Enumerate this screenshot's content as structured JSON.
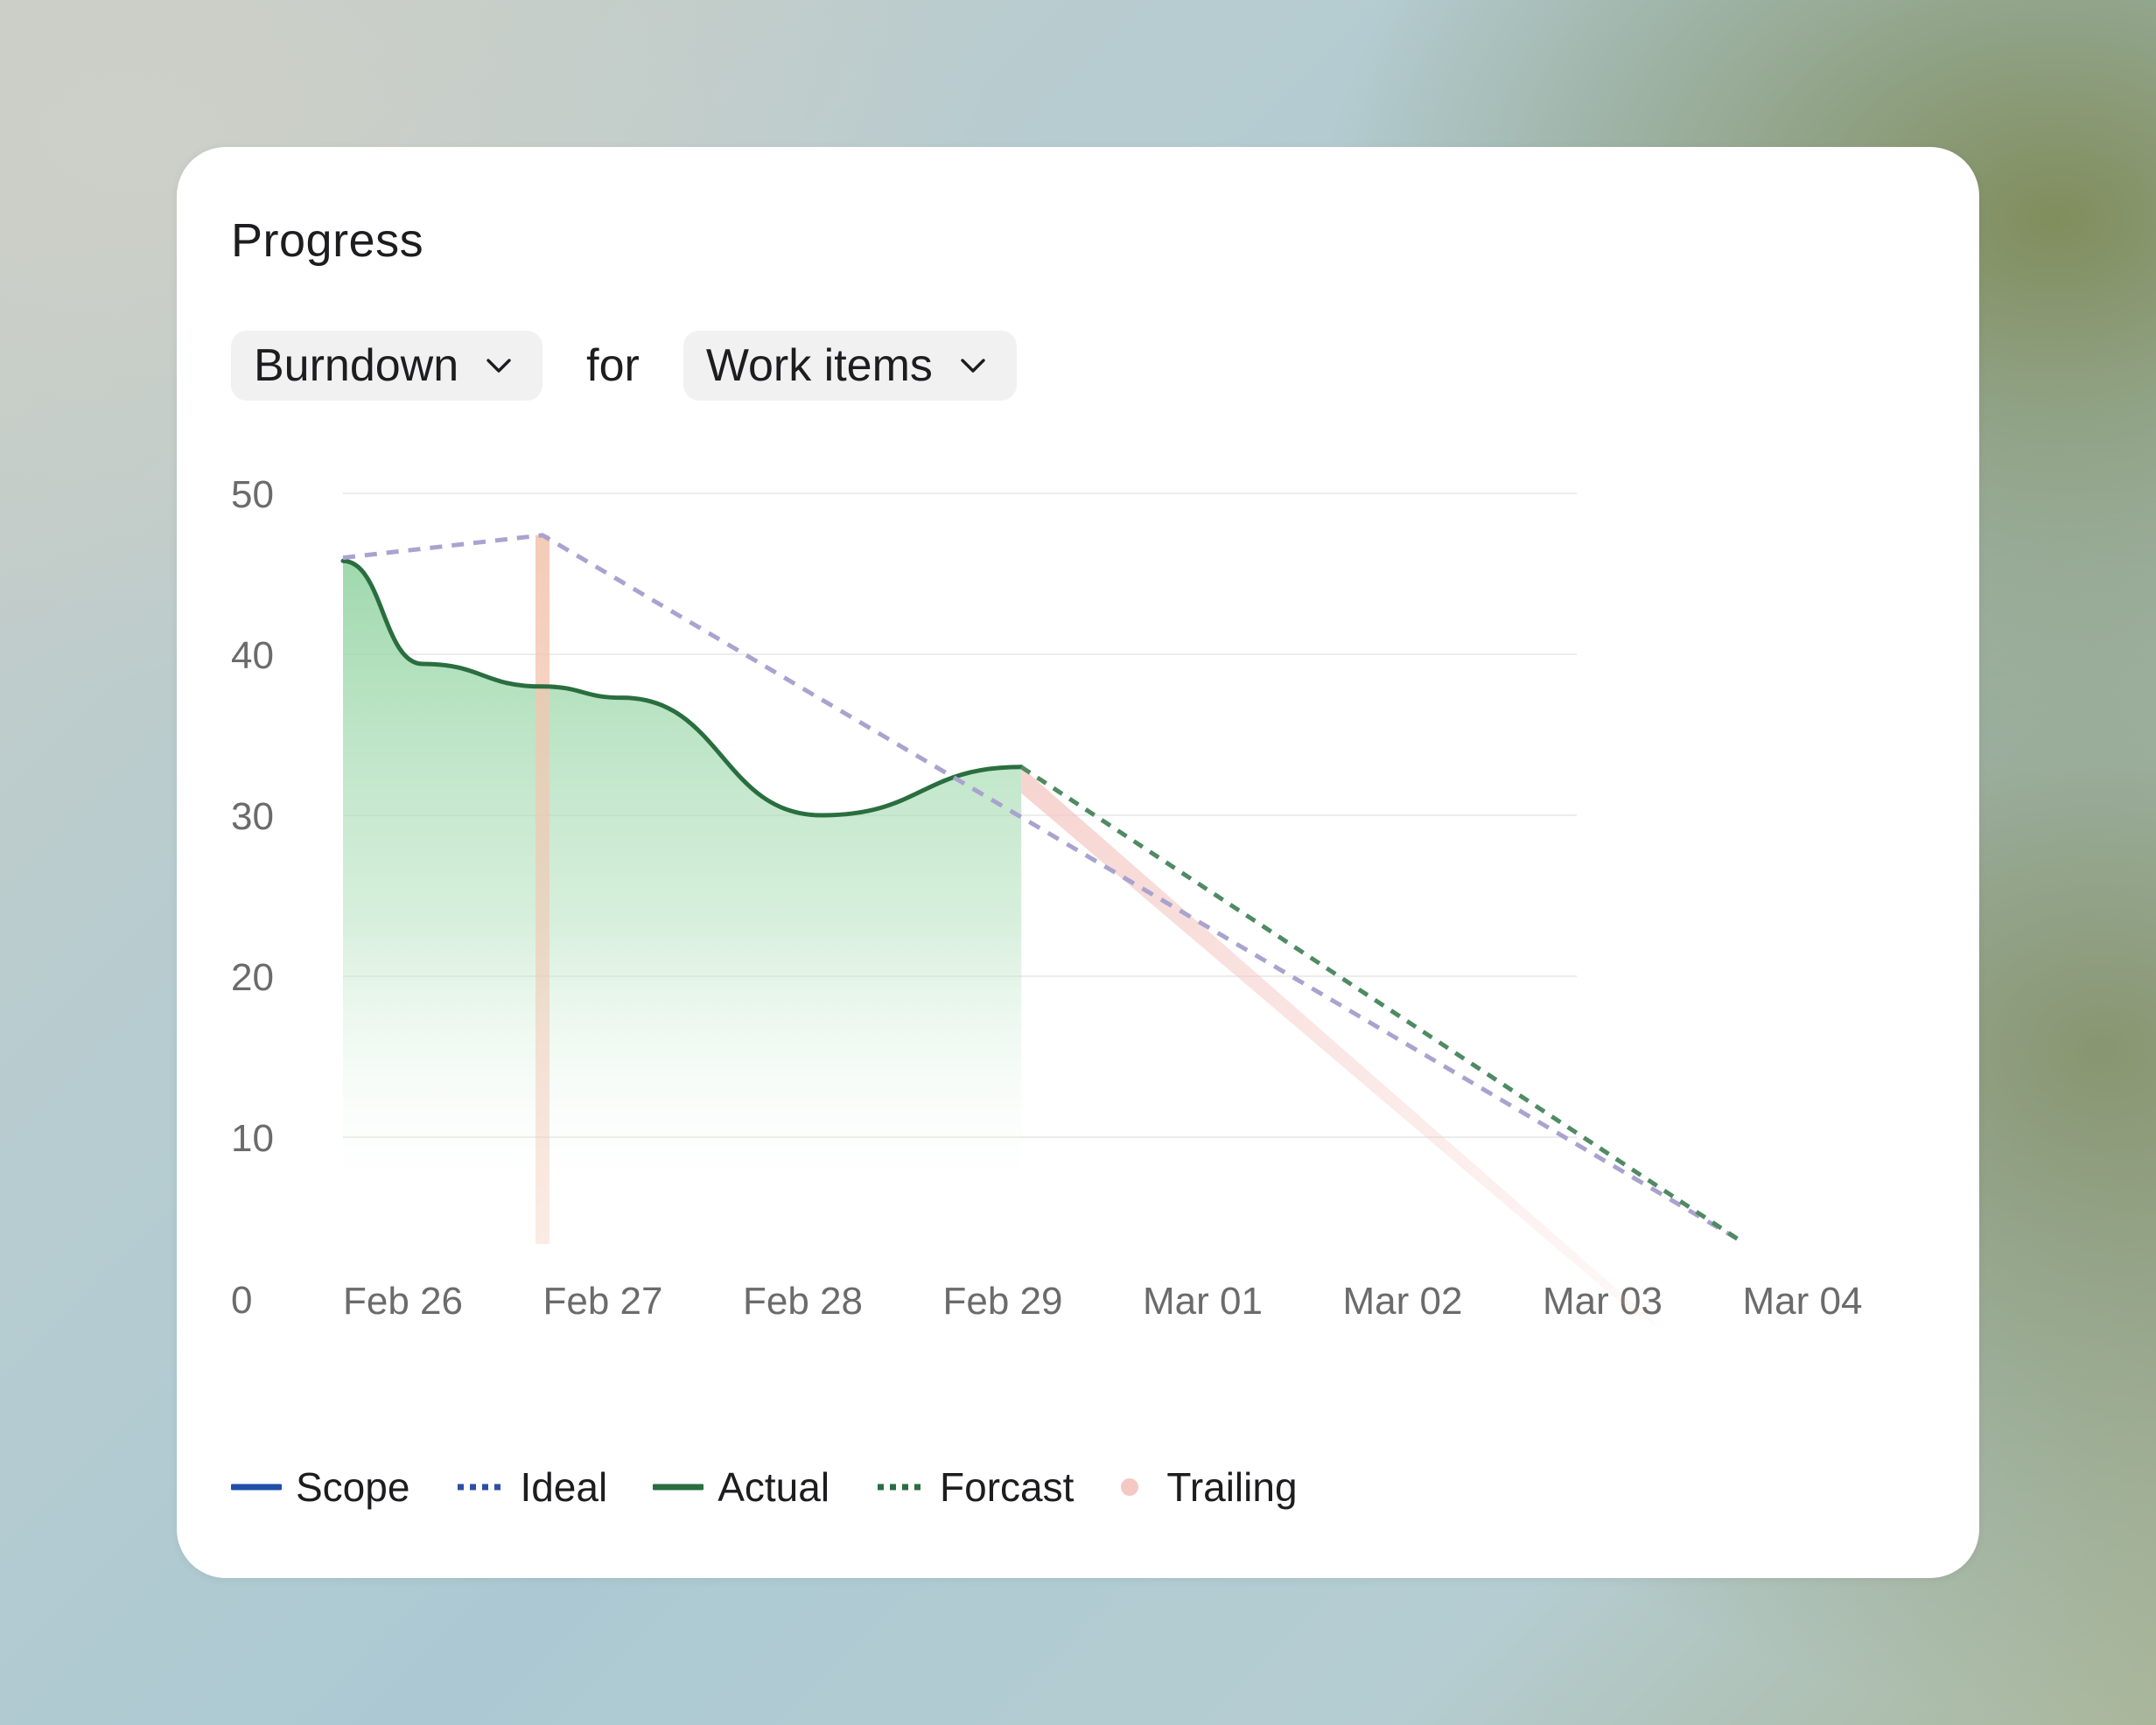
{
  "card": {
    "title": "Progress"
  },
  "controls": {
    "metric_select": {
      "value": "Burndown",
      "icon": "chevron-down-icon"
    },
    "connector": "for",
    "unit_select": {
      "value": "Work items",
      "icon": "chevron-down-icon"
    }
  },
  "colors": {
    "scope": "#1f4fa8",
    "ideal": "#a9a3cf",
    "ideal_legend": "#2d4fa3",
    "actual": "#2a6e3f",
    "actual_fill_top": "#8fd29f",
    "forecast": "#4f8a63",
    "trailing": "#f4c9c4",
    "trailing_bar": "#f3c6b0",
    "grid": "#ececec",
    "tick": "#6b6b6b"
  },
  "chart_data": {
    "type": "line",
    "x_tick_labels": [
      "Feb 26",
      "Feb 27",
      "Feb 28",
      "Feb 29",
      "Mar 01",
      "Mar 02",
      "Mar 03",
      "Mar 04"
    ],
    "y_tick_labels": [
      "50",
      "40",
      "30",
      "20",
      "10",
      "0"
    ],
    "y_ticks": [
      50,
      40,
      30,
      20,
      10,
      0
    ],
    "ylim": [
      0,
      50
    ],
    "grid": true,
    "legend_position": "bottom-left",
    "series": [
      {
        "name": "Scope",
        "style": "solid",
        "points": []
      },
      {
        "name": "Ideal",
        "style": "dotted",
        "points": [
          {
            "x": "Feb 26",
            "y": 46
          },
          {
            "x": "Feb 27",
            "y": 47.4
          },
          {
            "x": "Mar 04",
            "y": 3.6
          }
        ]
      },
      {
        "name": "Actual",
        "style": "solid",
        "area": true,
        "points": [
          {
            "x": "Feb 26",
            "y": 45.8
          },
          {
            "x": "Feb 26.4",
            "y": 39.4
          },
          {
            "x": "Feb 27",
            "y": 38.0
          },
          {
            "x": "Feb 27.4",
            "y": 37.3
          },
          {
            "x": "Feb 28.4",
            "y": 30.0
          },
          {
            "x": "Feb 29.4",
            "y": 33.0
          }
        ]
      },
      {
        "name": "Forcast",
        "style": "dotted",
        "points": [
          {
            "x": "Feb 29.4",
            "y": 33.0
          },
          {
            "x": "Mar 04",
            "y": 3.6
          }
        ]
      },
      {
        "name": "Trailing",
        "style": "band",
        "points": [
          {
            "x": "Feb 29.4",
            "y": 33.0
          },
          {
            "x": "Mar 03.6",
            "y": 4.2
          }
        ]
      }
    ],
    "legend": [
      {
        "name": "Scope",
        "style": "solid"
      },
      {
        "name": "Ideal",
        "style": "dotted"
      },
      {
        "name": "Actual",
        "style": "solid"
      },
      {
        "name": "Forcast",
        "style": "dotted"
      },
      {
        "name": "Trailing",
        "style": "dot"
      }
    ]
  }
}
